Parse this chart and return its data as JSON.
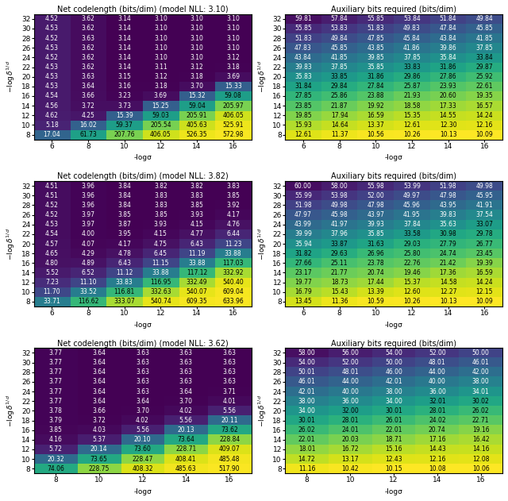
{
  "panels": [
    {
      "title": "Net codelength (bits/dim) (model NLL: 3.10)",
      "xticklabels": [
        6,
        8,
        10,
        12,
        14,
        16
      ],
      "yticklabels": [
        8,
        10,
        12,
        14,
        16,
        18,
        20,
        22,
        24,
        26,
        28,
        30,
        32
      ],
      "data": [
        [
          17.04,
          61.73,
          207.76,
          406.05,
          526.35,
          572.98
        ],
        [
          5.18,
          16.02,
          59.37,
          205.54,
          405.63,
          525.91
        ],
        [
          4.62,
          4.25,
          15.39,
          59.03,
          205.91,
          406.05
        ],
        [
          4.56,
          3.72,
          3.73,
          15.25,
          59.04,
          205.97
        ],
        [
          4.54,
          3.66,
          3.23,
          3.69,
          15.32,
          59.08
        ],
        [
          4.53,
          3.64,
          3.16,
          3.18,
          3.7,
          15.33
        ],
        [
          4.53,
          3.63,
          3.15,
          3.12,
          3.18,
          3.69
        ],
        [
          4.53,
          3.62,
          3.14,
          3.11,
          3.12,
          3.18
        ],
        [
          4.52,
          3.62,
          3.14,
          3.1,
          3.1,
          3.12
        ],
        [
          4.53,
          3.62,
          3.14,
          3.1,
          3.1,
          3.1
        ],
        [
          4.52,
          3.63,
          3.14,
          3.1,
          3.1,
          3.1
        ],
        [
          4.53,
          3.62,
          3.14,
          3.1,
          3.1,
          3.1
        ],
        [
          4.52,
          3.62,
          3.14,
          3.1,
          3.1,
          3.1
        ]
      ],
      "type": "net",
      "log_vmin": 3.09,
      "log_vmax": 600.0
    },
    {
      "title": "Auxiliary bits required (bits/dim)",
      "xticklabels": [
        6,
        8,
        10,
        12,
        14,
        16
      ],
      "yticklabels": [
        8,
        10,
        12,
        14,
        16,
        18,
        20,
        22,
        24,
        26,
        28,
        30,
        32
      ],
      "data": [
        [
          12.61,
          11.37,
          10.56,
          10.26,
          10.13,
          10.09
        ],
        [
          15.93,
          14.64,
          13.37,
          12.61,
          12.3,
          12.16
        ],
        [
          19.85,
          17.94,
          16.59,
          15.35,
          14.55,
          14.24
        ],
        [
          23.85,
          21.87,
          19.92,
          18.58,
          17.33,
          16.57
        ],
        [
          27.85,
          25.86,
          23.88,
          21.93,
          20.6,
          19.35
        ],
        [
          31.84,
          29.84,
          27.84,
          25.87,
          23.93,
          22.61
        ],
        [
          35.83,
          33.85,
          31.86,
          29.86,
          27.86,
          25.92
        ],
        [
          39.83,
          37.85,
          35.85,
          33.83,
          31.86,
          29.87
        ],
        [
          43.84,
          41.85,
          39.85,
          37.85,
          35.84,
          33.84
        ],
        [
          47.83,
          45.85,
          43.85,
          41.86,
          39.86,
          37.85
        ],
        [
          51.83,
          49.84,
          47.85,
          45.84,
          43.84,
          41.85
        ],
        [
          55.85,
          53.83,
          51.83,
          49.83,
          47.84,
          45.85
        ],
        [
          59.81,
          57.84,
          55.85,
          53.84,
          51.84,
          49.84
        ]
      ],
      "type": "aux",
      "vmin": 10.0,
      "vmax": 62.0
    },
    {
      "title": "Net codelength (bits/dim) (model NLL: 3.82)",
      "xticklabels": [
        6,
        8,
        10,
        12,
        14,
        16
      ],
      "yticklabels": [
        8,
        10,
        12,
        14,
        16,
        18,
        20,
        22,
        24,
        26,
        28,
        30,
        32
      ],
      "data": [
        [
          33.71,
          116.62,
          333.07,
          540.74,
          609.35,
          633.96
        ],
        [
          11.7,
          33.52,
          116.81,
          332.63,
          540.07,
          609.04
        ],
        [
          7.23,
          11.1,
          33.83,
          116.95,
          332.49,
          540.4
        ],
        [
          5.52,
          6.52,
          11.12,
          33.88,
          117.12,
          332.92
        ],
        [
          4.8,
          4.89,
          6.43,
          11.15,
          33.88,
          117.03
        ],
        [
          4.65,
          4.29,
          4.78,
          6.45,
          11.19,
          33.88
        ],
        [
          4.57,
          4.07,
          4.17,
          4.75,
          6.43,
          11.23
        ],
        [
          4.54,
          4.0,
          3.95,
          4.15,
          4.77,
          6.44
        ],
        [
          4.53,
          3.97,
          3.87,
          3.93,
          4.15,
          4.76
        ],
        [
          4.52,
          3.97,
          3.85,
          3.85,
          3.93,
          4.17
        ],
        [
          4.52,
          3.96,
          3.84,
          3.83,
          3.85,
          3.92
        ],
        [
          4.51,
          3.96,
          3.84,
          3.83,
          3.83,
          3.85
        ],
        [
          4.51,
          3.96,
          3.84,
          3.82,
          3.82,
          3.83
        ]
      ],
      "type": "net",
      "log_vmin": 3.8,
      "log_vmax": 650.0
    },
    {
      "title": "Auxiliary bits required (bits/dim)",
      "xticklabels": [
        6,
        8,
        10,
        12,
        14,
        16
      ],
      "yticklabels": [
        8,
        10,
        12,
        14,
        16,
        18,
        20,
        22,
        24,
        26,
        28,
        30,
        32
      ],
      "data": [
        [
          13.45,
          11.36,
          10.59,
          10.26,
          10.13,
          10.09
        ],
        [
          16.79,
          15.43,
          13.39,
          12.6,
          12.27,
          12.15
        ],
        [
          19.77,
          18.73,
          17.44,
          15.37,
          14.58,
          14.24
        ],
        [
          23.17,
          21.77,
          20.74,
          19.46,
          17.36,
          16.59
        ],
        [
          27.66,
          25.11,
          23.78,
          22.76,
          21.42,
          19.39
        ],
        [
          31.82,
          29.63,
          26.96,
          25.8,
          24.74,
          23.45
        ],
        [
          35.94,
          33.87,
          31.63,
          29.03,
          27.79,
          26.77
        ],
        [
          39.99,
          37.96,
          35.85,
          33.58,
          30.98,
          29.78
        ],
        [
          43.99,
          41.97,
          39.93,
          37.84,
          35.63,
          33.07
        ],
        [
          47.97,
          45.98,
          43.97,
          41.95,
          39.83,
          37.54
        ],
        [
          51.98,
          49.98,
          47.98,
          45.96,
          43.95,
          41.91
        ],
        [
          55.99,
          53.98,
          52.0,
          49.97,
          47.98,
          45.95
        ],
        [
          60.0,
          58.0,
          55.98,
          53.99,
          51.98,
          49.98
        ]
      ],
      "type": "aux",
      "vmin": 10.0,
      "vmax": 62.0
    },
    {
      "title": "Net codelength (bits/dim) (model NLL: 3.62)",
      "xticklabels": [
        8,
        10,
        12,
        14,
        16
      ],
      "yticklabels": [
        8,
        10,
        12,
        14,
        16,
        18,
        20,
        22,
        24,
        26,
        28,
        30,
        32
      ],
      "data": [
        [
          74.06,
          228.75,
          408.32,
          485.63,
          517.9
        ],
        [
          20.32,
          73.65,
          228.47,
          408.41,
          485.48
        ],
        [
          5.72,
          20.14,
          73.6,
          228.71,
          409.07
        ],
        [
          4.16,
          5.37,
          20.1,
          73.64,
          228.84
        ],
        [
          3.85,
          4.03,
          5.56,
          20.13,
          73.62
        ],
        [
          3.79,
          3.72,
          4.02,
          5.56,
          20.11
        ],
        [
          3.78,
          3.66,
          3.7,
          4.02,
          5.56
        ],
        [
          3.77,
          3.64,
          3.64,
          3.7,
          4.01
        ],
        [
          3.77,
          3.64,
          3.63,
          3.64,
          3.71
        ],
        [
          3.77,
          3.64,
          3.63,
          3.63,
          3.63
        ],
        [
          3.77,
          3.64,
          3.63,
          3.63,
          3.63
        ],
        [
          3.77,
          3.64,
          3.63,
          3.63,
          3.63
        ],
        [
          3.77,
          3.64,
          3.63,
          3.63,
          3.63
        ]
      ],
      "type": "net",
      "log_vmin": 3.6,
      "log_vmax": 530.0
    },
    {
      "title": "Auxiliary bits required (bits/dim)",
      "xticklabels": [
        8,
        10,
        12,
        14,
        16
      ],
      "yticklabels": [
        8,
        10,
        12,
        14,
        16,
        18,
        20,
        22,
        24,
        26,
        28,
        30,
        32
      ],
      "data": [
        [
          11.16,
          10.42,
          10.15,
          10.08,
          10.06
        ],
        [
          14.72,
          13.17,
          12.43,
          12.16,
          12.08
        ],
        [
          18.01,
          16.72,
          15.16,
          14.43,
          14.16
        ],
        [
          22.01,
          20.03,
          18.71,
          17.16,
          16.42
        ],
        [
          26.02,
          24.01,
          22.01,
          20.74,
          19.16
        ],
        [
          30.01,
          28.01,
          26.01,
          24.02,
          22.71
        ],
        [
          34.0,
          32.0,
          30.01,
          28.01,
          26.02
        ],
        [
          38.0,
          36.0,
          34.0,
          32.01,
          30.02
        ],
        [
          42.01,
          40.0,
          38.0,
          36.0,
          34.01
        ],
        [
          46.01,
          44.0,
          42.01,
          40.0,
          38.0
        ],
        [
          50.01,
          48.01,
          46.0,
          44.0,
          42.0
        ],
        [
          54.0,
          52.0,
          50.0,
          48.01,
          46.01
        ],
        [
          58.0,
          56.0,
          54.0,
          52.0,
          50.0
        ]
      ],
      "type": "aux",
      "vmin": 10.0,
      "vmax": 60.0
    }
  ],
  "xlabel": "-logσ",
  "ylabel": "-log δ$^{1/d}$",
  "font_size": 6.5,
  "title_font_size": 7.0,
  "annot_font_size": 5.5
}
